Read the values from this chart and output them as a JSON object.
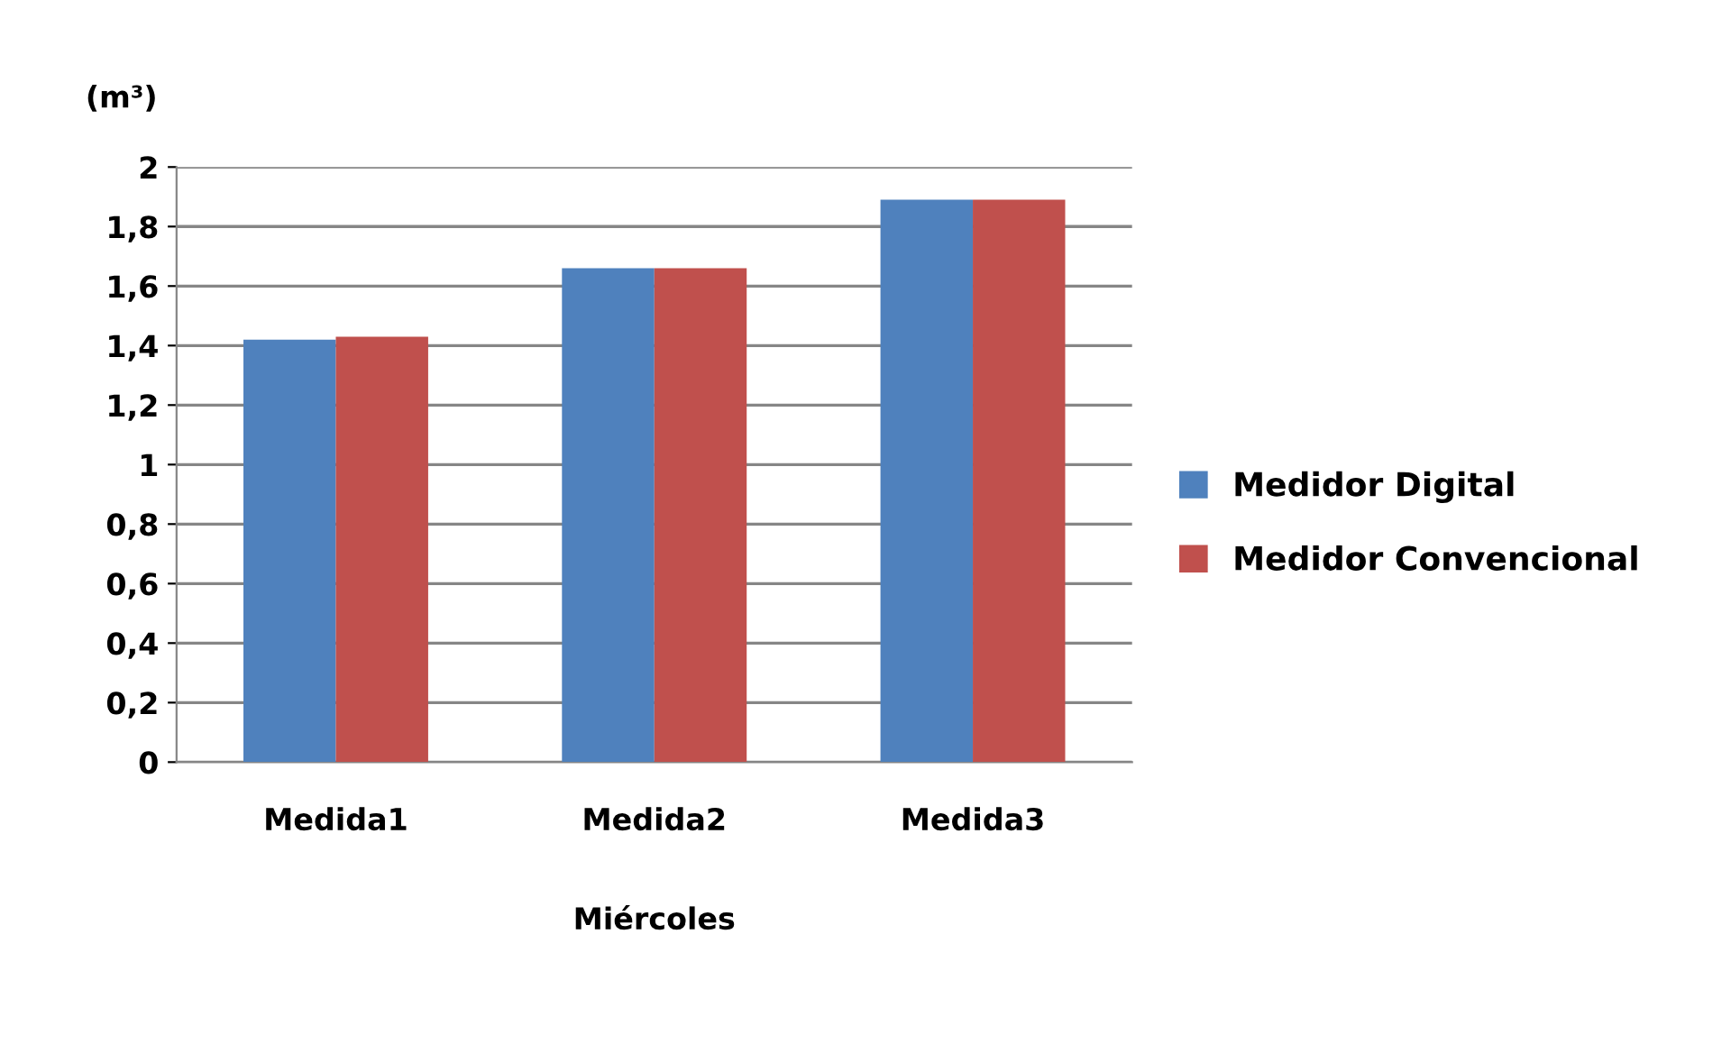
{
  "chart_data": {
    "type": "bar",
    "categories": [
      "Medida1",
      "Medida2",
      "Medida3"
    ],
    "xlabel": "Miércoles",
    "ylabel": "(m³)",
    "series": [
      {
        "name": "Medidor Digital",
        "color": "#4f81bd",
        "values": [
          1.42,
          1.66,
          1.89
        ]
      },
      {
        "name": "Medidor Convencional",
        "color": "#c0504d",
        "values": [
          1.43,
          1.66,
          1.89
        ]
      }
    ],
    "ylim": [
      0,
      2
    ],
    "yticks": [
      {
        "value": 0,
        "label": "0"
      },
      {
        "value": 0.2,
        "label": "0,2"
      },
      {
        "value": 0.4,
        "label": "0,4"
      },
      {
        "value": 0.6,
        "label": "0,6"
      },
      {
        "value": 0.8,
        "label": "0,8"
      },
      {
        "value": 1,
        "label": "1"
      },
      {
        "value": 1.2,
        "label": "1,2"
      },
      {
        "value": 1.4,
        "label": "1,4"
      },
      {
        "value": 1.6,
        "label": "1,6"
      },
      {
        "value": 1.8,
        "label": "1,8"
      },
      {
        "value": 2,
        "label": "2"
      }
    ],
    "grid": "y",
    "legend": "right"
  }
}
